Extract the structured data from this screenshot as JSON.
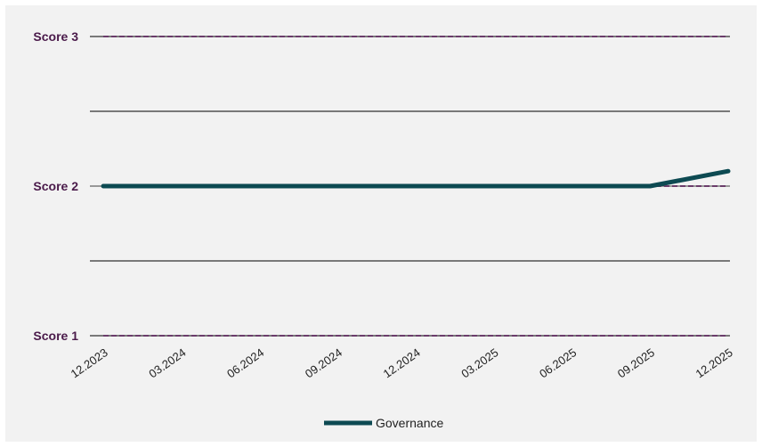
{
  "chart_data": {
    "type": "line",
    "title": "",
    "xlabel": "",
    "ylabel": "",
    "categories": [
      "12.2023",
      "03.2024",
      "06.2024",
      "09.2024",
      "12.2024",
      "03.2025",
      "06.2025",
      "09.2025",
      "12.2025"
    ],
    "y_tick_labels": [
      "Score 1",
      "Score 2",
      "Score 3"
    ],
    "y_tick_values": [
      1,
      2,
      3
    ],
    "ylim": [
      1,
      3
    ],
    "grid": true,
    "legend_position": "bottom",
    "series": [
      {
        "name": "Governance",
        "color": "#0d4a52",
        "values": [
          2,
          2,
          2,
          2,
          2,
          2,
          2,
          2,
          2.1
        ]
      }
    ],
    "reference_series": [
      {
        "values": [
          3,
          3,
          3,
          3,
          3,
          3,
          3,
          3,
          3
        ],
        "color": "#6b3d6b",
        "style": "dashed"
      },
      {
        "values": [
          2,
          2,
          2,
          2,
          2,
          2,
          2,
          2,
          2
        ],
        "color": "#6b3d6b",
        "style": "dashed"
      },
      {
        "values": [
          1,
          1,
          1,
          1,
          1,
          1,
          1,
          1,
          1
        ],
        "color": "#6b3d6b",
        "style": "dashed"
      }
    ]
  }
}
